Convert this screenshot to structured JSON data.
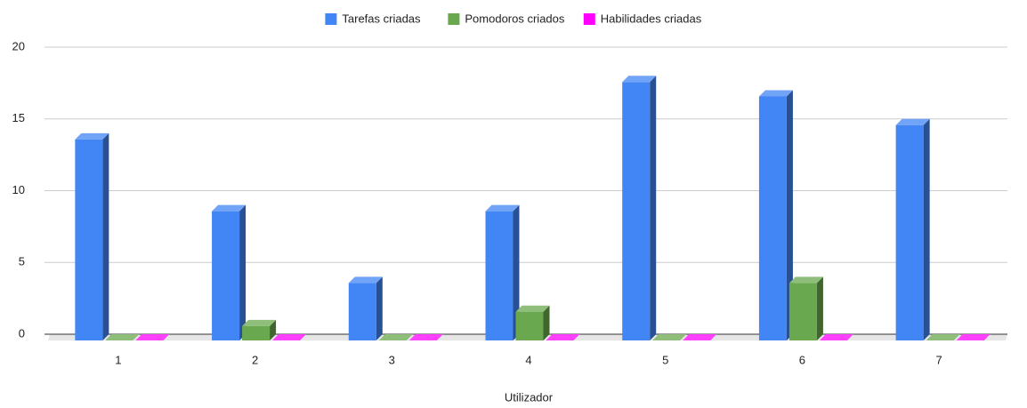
{
  "chart_data": {
    "type": "bar3d",
    "categories": [
      "1",
      "2",
      "3",
      "4",
      "5",
      "6",
      "7"
    ],
    "series": [
      {
        "name": "Tarefas criadas",
        "color": "#4285f4",
        "values": [
          14,
          9,
          4,
          9,
          18,
          17,
          15
        ]
      },
      {
        "name": "Pomodoros criados",
        "color": "#6aa84f",
        "values": [
          0,
          1,
          0,
          2,
          0,
          4,
          0
        ]
      },
      {
        "name": "Habilidades criadas",
        "color": "#ff00ff",
        "values": [
          0,
          0,
          0,
          0,
          0,
          0,
          0
        ]
      }
    ],
    "xlabel": "Utilizador",
    "ylim": [
      0,
      20
    ],
    "yticks": [
      0,
      5,
      10,
      15,
      20
    ],
    "grid": true,
    "legend": "top"
  }
}
